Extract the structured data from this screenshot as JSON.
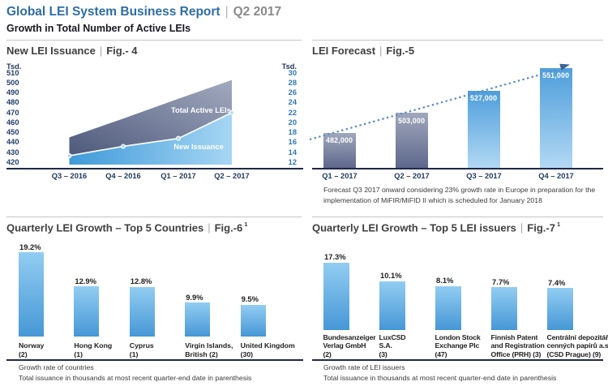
{
  "header": {
    "title": "Global LEI System Business Report",
    "sep": "|",
    "period": "Q2 2017",
    "subtitle": "Growth in Total Number of Active LEIs"
  },
  "colors": {
    "brand_blue": "#2e6da4",
    "muted_gray": "#8a8a8a",
    "dark_navy_text": "#24406b",
    "axis_blue_text": "#2e76b6",
    "axis_line": "#1e2946",
    "dark_area_start": "#4e597b",
    "dark_area_end": "#a2aabf",
    "light_area_start": "#3f9ad9",
    "light_area_end": "#a6d6f4",
    "dark_bar_top": "#a0a8bc",
    "dark_bar_bottom": "#5c668b",
    "forecast_bar_top": "#4e9edb",
    "forecast_bar_bottom": "#b3d9f4",
    "growth_bar_top": "#92cdf2",
    "growth_bar_bottom": "#4697d6",
    "trend_blue": "#5b8bc4",
    "trend_arrow": "#3e6194"
  },
  "chart_data": [
    {
      "id": "fig4",
      "type": "area",
      "title": "New LEI Issuance",
      "fig_label": "Fig.- 4",
      "left_axis": {
        "unit": "Tsd.",
        "ticks": [
          510,
          500,
          490,
          480,
          470,
          460,
          450,
          440,
          430,
          420
        ],
        "range": [
          420,
          510
        ]
      },
      "right_axis": {
        "unit": "Tsd.",
        "ticks": [
          30,
          28,
          26,
          24,
          22,
          20,
          18,
          16,
          14,
          12
        ],
        "range": [
          12,
          30
        ]
      },
      "categories": [
        "Q3 – 2016",
        "Q4 – 2016",
        "Q1 – 2017",
        "Q2 – 2017"
      ],
      "series": [
        {
          "name": "Total Active LEIs",
          "axis": "left",
          "values": [
            445,
            464,
            484,
            503
          ]
        },
        {
          "name": "New Issuance",
          "axis": "right",
          "values": [
            13.3,
            15.2,
            16.8,
            22.0
          ]
        }
      ],
      "legend_position": "inside",
      "grid": false
    },
    {
      "id": "fig5",
      "type": "bar",
      "title": "LEI Forecast",
      "fig_label": "Fig.-5",
      "categories": [
        "Q1 – 2017",
        "Q2 – 2017",
        "Q3 – 2017",
        "Q4 – 2017"
      ],
      "values": [
        482000,
        503000,
        527000,
        551000
      ],
      "value_labels": [
        "482,000",
        "503,000",
        "527,000",
        "551,000"
      ],
      "bar_styles": [
        "actual",
        "actual",
        "forecast",
        "forecast"
      ],
      "ylim": [
        444000,
        555000
      ],
      "trendline": "dotted-rising-arrow",
      "grid": false,
      "footnote_lines": [
        "Forecast Q3 2017 onward considering 23% growth rate in Europe in preparation for the",
        "implementation of MiFIR/MiFID II which is scheduled for January 2018"
      ]
    },
    {
      "id": "fig6",
      "type": "bar",
      "title": "Quarterly LEI Growth – Top 5 Countries",
      "fig_label": "Fig.-6",
      "footnote_ref": "1",
      "categories": [
        [
          "Norway",
          "(2)"
        ],
        [
          "Hong Kong",
          "(1)"
        ],
        [
          "Cyprus",
          "(1)"
        ],
        [
          "Virgin Islands,",
          "British (2)"
        ],
        [
          "United Kingdom",
          "(30)"
        ]
      ],
      "values": [
        19.2,
        12.9,
        12.8,
        9.9,
        9.5
      ],
      "value_labels": [
        "19.2%",
        "12.9%",
        "12.8%",
        "9.9%",
        "9.5%"
      ],
      "ylim": [
        3.6,
        20.4
      ],
      "grid": false,
      "footnotes": [
        "Growth rate of countries",
        "Total issuance in thousands at most recent quarter-end date in parenthesis"
      ]
    },
    {
      "id": "fig7",
      "type": "bar",
      "title": "Quarterly LEI Growth – Top 5 LEI issuers",
      "fig_label": "Fig.-7",
      "footnote_ref": "1",
      "categories": [
        [
          "Bundesanzeiger",
          "Verlag GmbH",
          "(2)"
        ],
        [
          "LuxCSD",
          "S.A.",
          "(3)"
        ],
        [
          "London Stock",
          "Exchange Plc",
          "(47)"
        ],
        [
          "Finnish Patent",
          "and Registration",
          "Office (PRH) (3)"
        ],
        [
          "Centrální depozitář",
          "cenných papírů a.s.",
          "(CSD Prague) (9)"
        ]
      ],
      "values": [
        17.3,
        10.1,
        8.1,
        7.7,
        7.4
      ],
      "value_labels": [
        "17.3%",
        "10.1%",
        "8.1%",
        "7.7%",
        "7.4%"
      ],
      "ylim": [
        -9.2,
        20.9
      ],
      "grid": false,
      "footnotes": [
        "Growth rate of LEI issuers",
        "Total issuance in thousands at most recent quarter-end date in parenthesis"
      ]
    }
  ]
}
